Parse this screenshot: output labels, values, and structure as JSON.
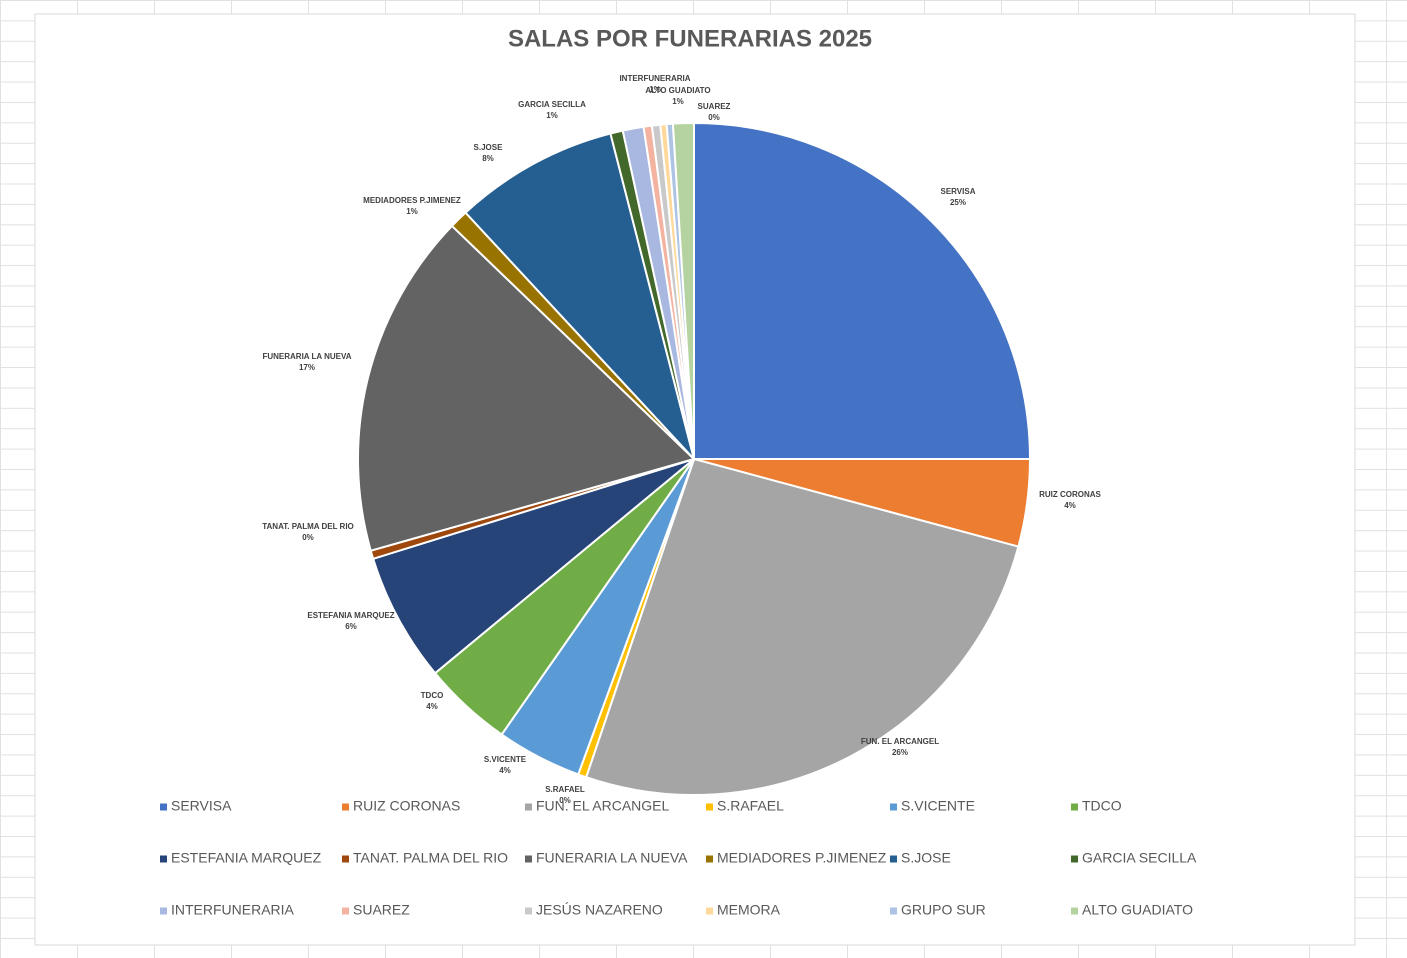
{
  "chart_data": {
    "type": "pie",
    "title": "SALAS POR FUNERARIAS 2025",
    "categories": [
      "SERVISA",
      "RUIZ CORONAS",
      "FUN.  EL ARCANGEL",
      "S.RAFAEL",
      "S.VICENTE",
      "TDCO",
      "ESTEFANIA MARQUEZ",
      "TANAT. PALMA DEL RIO",
      "FUNERARIA LA NUEVA",
      "MEDIADORES P.JIMENEZ",
      "S.JOSE",
      "GARCIA SECILLA",
      "INTERFUNERARIA",
      "SUAREZ",
      "JESÚS NAZARENO",
      "MEMORA",
      "GRUPO SUR",
      "ALTO GUADIATO"
    ],
    "values": [
      25,
      4.2,
      26,
      0.4,
      4.1,
      4.3,
      6.2,
      0.4,
      16.6,
      0.9,
      7.9,
      0.6,
      1,
      0.4,
      0.4,
      0.3,
      0.3,
      1
    ],
    "value_labels": [
      "25%",
      "4%",
      "26%",
      "0%",
      "4%",
      "4%",
      "6%",
      "0%",
      "17%",
      "1%",
      "8%",
      "1%",
      "1%",
      "0%",
      null,
      null,
      null,
      "1%"
    ],
    "colors": [
      "#4472c4",
      "#ed7d31",
      "#a5a5a5",
      "#ffc000",
      "#5b9bd5",
      "#70ad47",
      "#264478",
      "#9e480e",
      "#636363",
      "#997300",
      "#255e91",
      "#43682b",
      "#a9b8e0",
      "#f4b3a0",
      "#c9c9c9",
      "#ffd89a",
      "#adc3e4",
      "#b5d3a0"
    ],
    "legend": "bottom"
  }
}
